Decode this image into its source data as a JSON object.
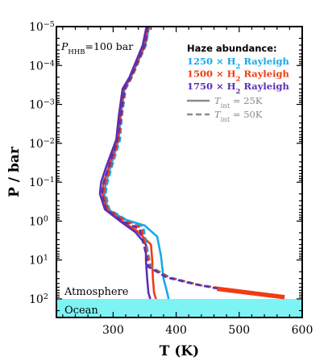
{
  "chart_data": {
    "type": "line",
    "xlabel": "T (K)",
    "ylabel": "P / bar",
    "xlim": [
      210,
      600
    ],
    "ylim": [
      300,
      1e-05
    ],
    "yscale": "log",
    "yinverted": true,
    "xticks": [
      300,
      400,
      500,
      600
    ],
    "xtick_labels": [
      "300",
      "400",
      "500",
      "600"
    ],
    "yticks": [
      1e-05,
      0.0001,
      0.001,
      0.01,
      0.1,
      1,
      10,
      100
    ],
    "ytick_labels": [
      {
        "base": "10",
        "exp": "−5"
      },
      {
        "base": "10",
        "exp": "−4"
      },
      {
        "base": "10",
        "exp": "−3"
      },
      {
        "base": "10",
        "exp": "−2"
      },
      {
        "base": "10",
        "exp": "−1"
      },
      {
        "base": "10",
        "exp": "0"
      },
      {
        "base": "10",
        "exp": "1"
      },
      {
        "base": "10",
        "exp": "2"
      }
    ],
    "annotation": {
      "pre": "P",
      "sub": "HHB",
      "post": "=100 bar"
    },
    "regions": [
      {
        "label": "Atmosphere",
        "p_top": 1e-05,
        "p_bottom": 100
      },
      {
        "label": "Ocean",
        "p_top": 100,
        "p_bottom": 300,
        "color": "#7ef3f3"
      }
    ],
    "legend": {
      "title": "Haze abundance:",
      "entries": [
        {
          "pre": "1250 × H",
          "sub": "2",
          "post": " Rayleigh",
          "color": "#19a8e8"
        },
        {
          "pre": "1500 × H",
          "sub": "2",
          "post": " Rayleigh",
          "color": "#f03c14"
        },
        {
          "pre": "1750 × H",
          "sub": "2",
          "post": " Rayleigh",
          "color": "#5b2fb4"
        }
      ],
      "line_styles": [
        {
          "style": "solid",
          "pre": "T",
          "sub": "int",
          "post": " = 25K"
        },
        {
          "style": "dashed",
          "pre": "T",
          "sub": "int",
          "post": " = 50K"
        }
      ],
      "tint_color": "#8a8a8a"
    },
    "series": [
      {
        "color": "#19a8e8",
        "style": "solid",
        "points": [
          [
            357,
            1e-05
          ],
          [
            351,
            3e-05
          ],
          [
            328,
            0.0002
          ],
          [
            318,
            0.0004
          ],
          [
            312,
            0.002
          ],
          [
            309,
            0.008
          ],
          [
            296,
            0.04
          ],
          [
            289,
            0.1
          ],
          [
            286,
            0.2
          ],
          [
            292,
            0.5
          ],
          [
            318,
            0.9
          ],
          [
            350,
            1.3
          ],
          [
            370,
            2.5
          ],
          [
            376,
            8
          ],
          [
            380,
            30
          ],
          [
            386,
            70
          ],
          [
            388,
            100
          ]
        ]
      },
      {
        "color": "#f03c14",
        "style": "solid",
        "points": [
          [
            355,
            1e-05
          ],
          [
            350,
            3e-05
          ],
          [
            328,
            0.0002
          ],
          [
            317,
            0.0004
          ],
          [
            311,
            0.002
          ],
          [
            307,
            0.008
          ],
          [
            293,
            0.04
          ],
          [
            285,
            0.1
          ],
          [
            283,
            0.2
          ],
          [
            290,
            0.5
          ],
          [
            314,
            1.0
          ],
          [
            338,
            1.8
          ],
          [
            360,
            4
          ],
          [
            362,
            10
          ],
          [
            363,
            30
          ],
          [
            365,
            70
          ],
          [
            368,
            100
          ]
        ]
      },
      {
        "color": "#5b2fb4",
        "style": "solid",
        "points": [
          [
            353,
            1e-05
          ],
          [
            347,
            3e-05
          ],
          [
            326,
            0.0002
          ],
          [
            315,
            0.0004
          ],
          [
            309,
            0.002
          ],
          [
            305,
            0.008
          ],
          [
            289,
            0.04
          ],
          [
            281,
            0.1
          ],
          [
            279,
            0.2
          ],
          [
            287,
            0.5
          ],
          [
            311,
            1.0
          ],
          [
            335,
            1.9
          ],
          [
            352,
            4
          ],
          [
            352,
            10
          ],
          [
            354,
            30
          ],
          [
            356,
            70
          ],
          [
            359,
            100
          ]
        ]
      },
      {
        "color": "#19a8e8",
        "style": "dashed",
        "points": [
          [
            357,
            1e-05
          ],
          [
            352,
            3e-05
          ],
          [
            330,
            0.0002
          ],
          [
            320,
            0.0004
          ],
          [
            314,
            0.002
          ],
          [
            311,
            0.008
          ],
          [
            298,
            0.04
          ],
          [
            291,
            0.1
          ],
          [
            288,
            0.2
          ],
          [
            294,
            0.5
          ],
          [
            320,
            0.9
          ],
          [
            348,
            1.4
          ],
          [
            354,
            5
          ],
          [
            360,
            15
          ],
          [
            390,
            28
          ],
          [
            440,
            45
          ],
          [
            500,
            62
          ],
          [
            560,
            80
          ],
          [
            572,
            90
          ]
        ]
      },
      {
        "color": "#f03c14",
        "style": "dashed",
        "points": [
          [
            356,
            1e-05
          ],
          [
            351,
            3e-05
          ],
          [
            329,
            0.0002
          ],
          [
            319,
            0.0004
          ],
          [
            313,
            0.002
          ],
          [
            309,
            0.008
          ],
          [
            296,
            0.04
          ],
          [
            288,
            0.1
          ],
          [
            285,
            0.2
          ],
          [
            292,
            0.5
          ],
          [
            318,
            0.95
          ],
          [
            345,
            1.5
          ],
          [
            352,
            5
          ],
          [
            358,
            15
          ],
          [
            388,
            28
          ],
          [
            440,
            45
          ],
          [
            500,
            62
          ],
          [
            560,
            80
          ],
          [
            572,
            90
          ]
        ]
      },
      {
        "color": "#5b2fb4",
        "style": "dashed",
        "points": [
          [
            355,
            1e-05
          ],
          [
            350,
            3e-05
          ],
          [
            328,
            0.0002
          ],
          [
            318,
            0.0004
          ],
          [
            312,
            0.002
          ],
          [
            307,
            0.008
          ],
          [
            293,
            0.04
          ],
          [
            285,
            0.1
          ],
          [
            282,
            0.2
          ],
          [
            289,
            0.5
          ],
          [
            315,
            1.0
          ],
          [
            342,
            1.6
          ],
          [
            350,
            5
          ],
          [
            356,
            15
          ],
          [
            385,
            28
          ],
          [
            430,
            42
          ],
          [
            460,
            52
          ],
          [
            500,
            62
          ]
        ]
      }
    ],
    "highlight_segment": {
      "color": "#f03c14",
      "points": [
        [
          465,
          55
        ],
        [
          572,
          90
        ]
      ]
    }
  }
}
